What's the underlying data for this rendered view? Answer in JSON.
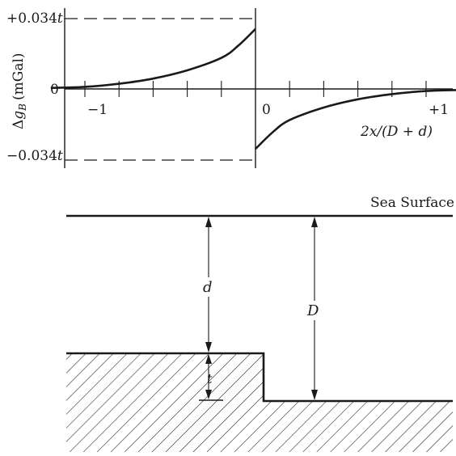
{
  "plot": {
    "y_top_label": "+0.034",
    "y_zero_label": "0",
    "y_bottom_label": "−0.034",
    "y_t_symbol": "t",
    "y_axis_title_delta": "Δ",
    "y_axis_title_g": "g",
    "y_axis_title_sub": "B",
    "y_axis_title_unit": "(mGal)",
    "x_minus_one": "−1",
    "x_zero": "0",
    "x_plus_one": "+1",
    "x_axis_title": "2x/(D + d)"
  },
  "section": {
    "sea_surface_label": "Sea Surface",
    "d_label": "d",
    "D_label": "D",
    "t_label": "t"
  },
  "chart_data": {
    "type": "line",
    "xlabel": "2x/(D + d)",
    "ylabel": "Δg_B (mGal)",
    "xlim": [
      -1.2,
      1.2
    ],
    "ylim": [
      -0.034,
      0.034
    ],
    "series": [
      {
        "x": [
          -1.2,
          -1.0,
          -0.8,
          -0.6,
          -0.4,
          -0.2,
          -0.1,
          0.0
        ],
        "y": [
          0.0005,
          0.001,
          0.0025,
          0.005,
          0.009,
          0.015,
          0.021,
          0.029
        ]
      },
      {
        "x": [
          0.0,
          0.1,
          0.2,
          0.4,
          0.6,
          0.8,
          1.0,
          1.2
        ],
        "y": [
          -0.029,
          -0.021,
          -0.015,
          -0.009,
          -0.005,
          -0.0025,
          -0.001,
          -0.0005
        ]
      }
    ]
  }
}
